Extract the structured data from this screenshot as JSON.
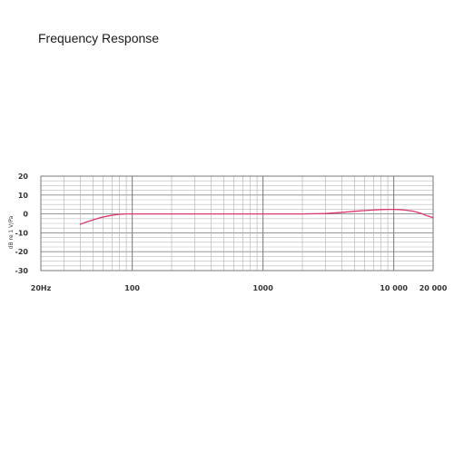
{
  "chart_data": {
    "type": "line",
    "title": "Frequency Response",
    "xlabel": "",
    "ylabel": "dB re 1 V/Pa",
    "xscale": "log",
    "xlim": [
      20,
      20000
    ],
    "ylim": [
      -30,
      20
    ],
    "x_tick_labels": [
      {
        "value": 20,
        "label": "20Hz"
      },
      {
        "value": 100,
        "label": "100"
      },
      {
        "value": 1000,
        "label": "1000"
      },
      {
        "value": 10000,
        "label": "10 000"
      },
      {
        "value": 20000,
        "label": "20 000"
      }
    ],
    "y_tick_labels": [
      {
        "value": 20,
        "label": "20"
      },
      {
        "value": 10,
        "label": "10"
      },
      {
        "value": 0,
        "label": "0"
      },
      {
        "value": -10,
        "label": "-10"
      },
      {
        "value": -20,
        "label": "-20"
      },
      {
        "value": -30,
        "label": "-30"
      }
    ],
    "grid": true,
    "series": [
      {
        "color": "#d9386a",
        "x": [
          40,
          45,
          50,
          55,
          60,
          70,
          80,
          90,
          100,
          200,
          500,
          1000,
          2000,
          3000,
          4000,
          5000,
          6000,
          7000,
          8000,
          9000,
          10000,
          11000,
          12000,
          14000,
          16000,
          18000,
          20000
        ],
        "y": [
          -5.5,
          -4.2,
          -3.2,
          -2.3,
          -1.6,
          -0.7,
          -0.2,
          0,
          0,
          0,
          0,
          0,
          0,
          0.2,
          0.8,
          1.4,
          1.8,
          2.1,
          2.3,
          2.4,
          2.4,
          2.3,
          2.1,
          1.5,
          0.4,
          -1.0,
          -2.0
        ]
      }
    ]
  }
}
